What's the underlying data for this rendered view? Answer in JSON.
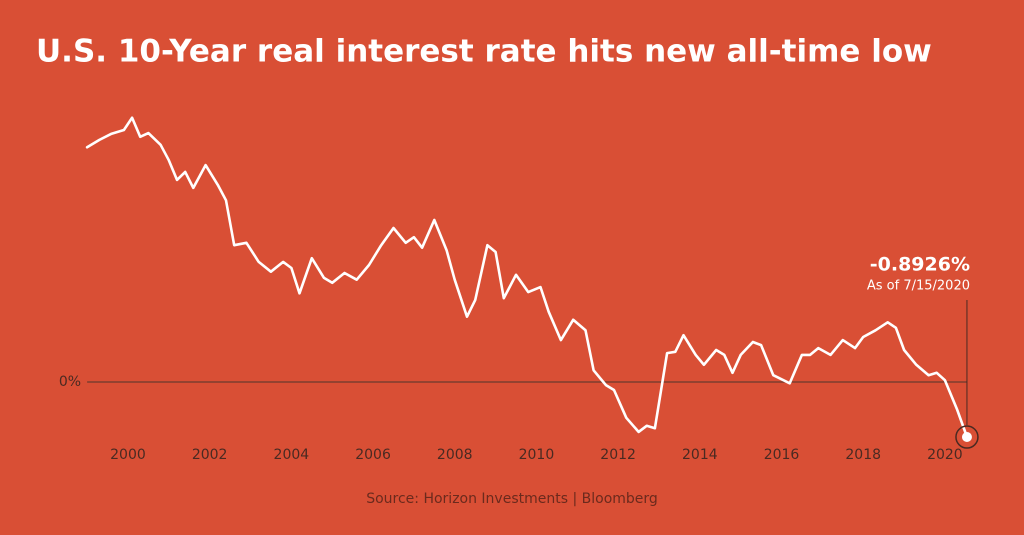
{
  "chart_data": {
    "type": "line",
    "title": "U.S. 10-Year real interest rate hits new all-time low",
    "source": "Source: Horizon Investments | Bloomberg",
    "annotation": {
      "label": "-0.8926%",
      "note": "As of 7/15/2020"
    },
    "color": "#ffffff",
    "xlim": [
      1998.5,
      2021.3
    ],
    "xticks": [
      2000,
      2002,
      2004,
      2006,
      2008,
      2010,
      2012,
      2014,
      2016,
      2018,
      2020
    ],
    "ylim": [
      -1.1,
      4.6
    ],
    "yticks": [
      {
        "value": 0,
        "label": "0%"
      }
    ],
    "x": [
      1999.0,
      1999.3,
      1999.6,
      1999.9,
      2000.1,
      2000.3,
      2000.5,
      2000.8,
      2001.0,
      2001.2,
      2001.4,
      2001.6,
      2001.9,
      2002.2,
      2002.4,
      2002.6,
      2002.9,
      2003.2,
      2003.5,
      2003.8,
      2004.0,
      2004.2,
      2004.5,
      2004.8,
      2005.0,
      2005.3,
      2005.6,
      2005.9,
      2006.2,
      2006.5,
      2006.8,
      2007.0,
      2007.2,
      2007.5,
      2007.8,
      2008.0,
      2008.3,
      2008.5,
      2008.8,
      2009.0,
      2009.2,
      2009.5,
      2009.8,
      2010.1,
      2010.3,
      2010.6,
      2010.9,
      2011.2,
      2011.4,
      2011.7,
      2011.9,
      2012.2,
      2012.5,
      2012.7,
      2012.9,
      2013.2,
      2013.4,
      2013.6,
      2013.9,
      2014.1,
      2014.4,
      2014.6,
      2014.8,
      2015.0,
      2015.3,
      2015.5,
      2015.8,
      2016.2,
      2016.5,
      2016.7,
      2016.9,
      2017.2,
      2017.5,
      2017.8,
      2018.0,
      2018.3,
      2018.6,
      2018.8,
      2019.0,
      2019.3,
      2019.6,
      2019.8,
      2020.0,
      2020.3,
      2020.54
    ],
    "values": [
      3.81,
      3.93,
      4.03,
      4.09,
      4.29,
      3.98,
      4.04,
      3.85,
      3.6,
      3.28,
      3.41,
      3.15,
      3.52,
      3.2,
      2.95,
      2.22,
      2.26,
      1.95,
      1.79,
      1.95,
      1.85,
      1.44,
      2.01,
      1.69,
      1.61,
      1.77,
      1.66,
      1.9,
      2.22,
      2.5,
      2.26,
      2.35,
      2.18,
      2.63,
      2.14,
      1.66,
      1.06,
      1.33,
      2.22,
      2.11,
      1.36,
      1.74,
      1.46,
      1.54,
      1.14,
      0.68,
      1.01,
      0.84,
      0.19,
      -0.05,
      -0.13,
      -0.58,
      -0.81,
      -0.71,
      -0.75,
      0.47,
      0.49,
      0.76,
      0.44,
      0.28,
      0.52,
      0.44,
      0.15,
      0.44,
      0.65,
      0.6,
      0.11,
      -0.02,
      0.44,
      0.44,
      0.55,
      0.44,
      0.68,
      0.55,
      0.73,
      0.84,
      0.97,
      0.88,
      0.52,
      0.28,
      0.11,
      0.15,
      0.03,
      -0.45,
      -0.8926
    ]
  }
}
